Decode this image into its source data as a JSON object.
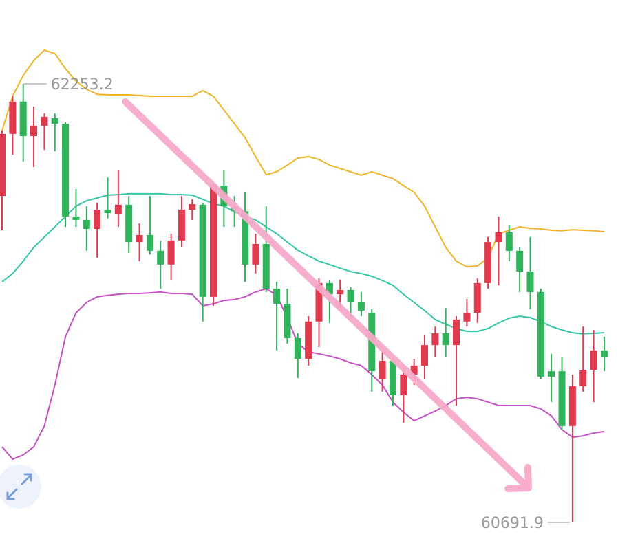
{
  "chart_data": {
    "type": "candlestick",
    "up_color": "#e03a4e",
    "down_color": "#2fb35b",
    "ylim": [
      60618.6,
      62551.7
    ],
    "open": [
      61854,
      62075,
      62190,
      62067,
      62104,
      62131,
      62111,
      61781,
      61769,
      61737,
      61805,
      61788,
      61823,
      61690,
      61715,
      61659,
      61610,
      61695,
      61805,
      61823,
      61495,
      61891,
      61818,
      61800,
      61610,
      61683,
      61524,
      61470,
      61348,
      61274,
      61407,
      61544,
      61504,
      61519,
      61475,
      61438,
      61201,
      61267,
      61145,
      61218,
      61250,
      61323,
      61365,
      61323,
      61407,
      61438,
      61544,
      61690,
      61725,
      61659,
      61585,
      61512,
      61230,
      61230,
      61035,
      61177,
      61235,
      61304
    ],
    "high": [
      62087,
      62209,
      62253.2,
      62172,
      62148,
      62148,
      62116,
      61879,
      61818,
      61830,
      61920,
      61945,
      61854,
      61756,
      61854,
      61695,
      61720,
      61854,
      61842,
      61830,
      61903,
      61945,
      61854,
      61867,
      61720,
      61818,
      61548,
      61524,
      61365,
      61426,
      61561,
      61553,
      61556,
      61529,
      61512,
      61451,
      61304,
      61279,
      61255,
      61274,
      61358,
      61389,
      61455,
      61426,
      61487,
      61561,
      61708,
      61781,
      61749,
      61671,
      61708,
      61524,
      61292,
      61279,
      61218,
      61389,
      61377,
      61353
    ],
    "low": [
      61732,
      62001,
      61977,
      61957,
      62018,
      62013,
      61744,
      61744,
      61659,
      61634,
      61774,
      61744,
      61651,
      61622,
      61646,
      61524,
      61553,
      61671,
      61769,
      61407,
      61463,
      61744,
      61744,
      61548,
      61578,
      61512,
      61304,
      61328,
      61206,
      61250,
      61316,
      61402,
      61451,
      61414,
      61426,
      61157,
      61157,
      61108,
      61047,
      61181,
      61201,
      61279,
      61279,
      61108,
      61389,
      61402,
      61524,
      61536,
      61622,
      61512,
      61451,
      61201,
      61120,
      61022,
      60691.9,
      61157,
      61120,
      61230
    ],
    "close": [
      62075,
      62190,
      62067,
      62104,
      62136,
      62111,
      61781,
      61769,
      61737,
      61805,
      61793,
      61823,
      61690,
      61715,
      61659,
      61610,
      61695,
      61805,
      61825,
      61495,
      61896,
      61818,
      61800,
      61610,
      61683,
      61524,
      61470,
      61348,
      61274,
      61407,
      61544,
      61504,
      61519,
      61475,
      61446,
      61230,
      61267,
      61145,
      61218,
      61250,
      61323,
      61365,
      61323,
      61414,
      61438,
      61544,
      61690,
      61725,
      61659,
      61585,
      61512,
      61211,
      61211,
      61035,
      61177,
      61235,
      61304,
      61279
    ],
    "bands": [
      {
        "color": "#f0b429",
        "values": [
          62087,
          62209,
          62283,
          62336,
          62373,
          62361,
          62307,
          62263,
          62234,
          62216,
          62214,
          62214,
          62214,
          62212,
          62209,
          62209,
          62209,
          62209,
          62209,
          62229,
          62209,
          62160,
          62111,
          62062,
          61994,
          61930,
          61940,
          61964,
          61989,
          61994,
          61984,
          61964,
          61952,
          61940,
          61928,
          61940,
          61928,
          61916,
          61891,
          61867,
          61818,
          61744,
          61671,
          61622,
          61602,
          61605,
          61634,
          61720,
          61732,
          61744,
          61739,
          61737,
          61732,
          61730,
          61734,
          61732,
          61730,
          61727
        ]
      },
      {
        "color": "#34c6a8",
        "values": [
          61548,
          61578,
          61622,
          61671,
          61708,
          61744,
          61781,
          61818,
          61837,
          61847,
          61857,
          61859,
          61862,
          61862,
          61862,
          61862,
          61859,
          61859,
          61857,
          61842,
          61827,
          61818,
          61798,
          61781,
          61769,
          61744,
          61720,
          61690,
          61661,
          61641,
          61622,
          61610,
          61597,
          61585,
          61578,
          61568,
          61553,
          61536,
          61504,
          61475,
          61446,
          61414,
          61397,
          61382,
          61372,
          61372,
          61382,
          61402,
          61419,
          61426,
          61421,
          61407,
          61389,
          61377,
          61367,
          61363,
          61365,
          61367
        ]
      },
      {
        "color": "#c64fc6",
        "values": [
          60961,
          60917,
          60932,
          60961,
          61035,
          61181,
          61353,
          61438,
          61475,
          61495,
          61500,
          61504,
          61507,
          61507,
          61509,
          61512,
          61507,
          61507,
          61504,
          61463,
          61470,
          61482,
          61485,
          61495,
          61512,
          61524,
          61500,
          61421,
          61328,
          61299,
          61292,
          61284,
          61274,
          61260,
          61250,
          61218,
          61181,
          61120,
          61084,
          61054,
          61071,
          61088,
          61108,
          61132,
          61137,
          61132,
          61120,
          61108,
          61108,
          61108,
          61108,
          61096,
          61071,
          61022,
          60995,
          61000,
          61010,
          61015
        ]
      }
    ],
    "annotations": [
      "62253.2",
      "60691.9"
    ]
  }
}
